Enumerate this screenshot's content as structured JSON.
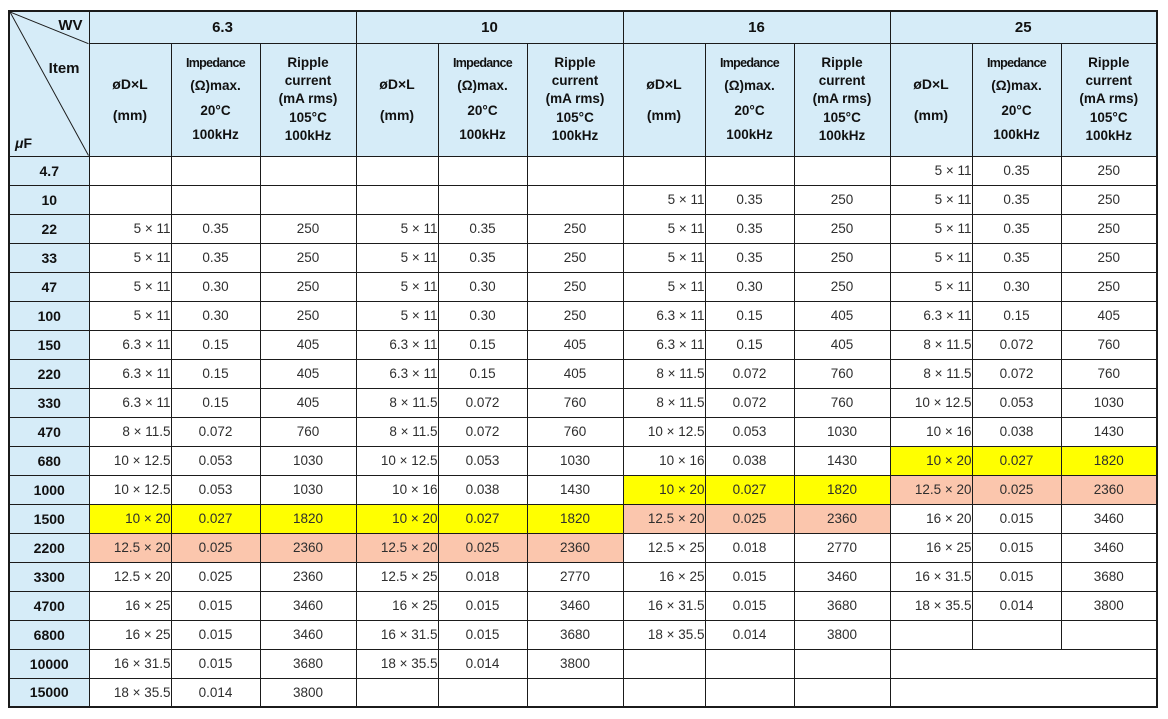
{
  "colors": {
    "header_bg": "#d6ecf8",
    "highlight_yellow": "#ffff00",
    "highlight_salmon": "#fbc6ad",
    "border": "#1b1b1b"
  },
  "table": {
    "corner": {
      "wv": "WV",
      "item": "Item",
      "uf": "μF"
    },
    "voltage_groups": [
      "6.3",
      "10",
      "16",
      "25"
    ],
    "column_headers": {
      "dim_lines": [
        "øD×L",
        "(mm)"
      ],
      "impedance_lines": [
        "Impedance",
        "(Ω)max.",
        "20°C",
        "100kHz"
      ],
      "ripple_lines": [
        "Ripple",
        "current",
        "(mA rms)",
        "105°C",
        "100kHz"
      ]
    },
    "rows": [
      {
        "uf": "4.7",
        "cells": [
          [
            "",
            "",
            ""
          ],
          [
            "",
            "",
            ""
          ],
          [
            "",
            "",
            ""
          ],
          [
            "5 × 11",
            "0.35",
            "250"
          ]
        ],
        "hl": [
          "",
          "",
          "",
          ""
        ]
      },
      {
        "uf": "10",
        "cells": [
          [
            "",
            "",
            ""
          ],
          [
            "",
            "",
            ""
          ],
          [
            "5 × 11",
            "0.35",
            "250"
          ],
          [
            "5 × 11",
            "0.35",
            "250"
          ]
        ],
        "hl": [
          "",
          "",
          "",
          ""
        ]
      },
      {
        "uf": "22",
        "cells": [
          [
            "5 × 11",
            "0.35",
            "250"
          ],
          [
            "5 × 11",
            "0.35",
            "250"
          ],
          [
            "5 × 11",
            "0.35",
            "250"
          ],
          [
            "5 × 11",
            "0.35",
            "250"
          ]
        ],
        "hl": [
          "",
          "",
          "",
          ""
        ]
      },
      {
        "uf": "33",
        "cells": [
          [
            "5 × 11",
            "0.35",
            "250"
          ],
          [
            "5 × 11",
            "0.35",
            "250"
          ],
          [
            "5 × 11",
            "0.35",
            "250"
          ],
          [
            "5 × 11",
            "0.35",
            "250"
          ]
        ],
        "hl": [
          "",
          "",
          "",
          ""
        ]
      },
      {
        "uf": "47",
        "cells": [
          [
            "5 × 11",
            "0.30",
            "250"
          ],
          [
            "5 × 11",
            "0.30",
            "250"
          ],
          [
            "5 × 11",
            "0.30",
            "250"
          ],
          [
            "5 × 11",
            "0.30",
            "250"
          ]
        ],
        "hl": [
          "",
          "",
          "",
          ""
        ]
      },
      {
        "uf": "100",
        "cells": [
          [
            "5 × 11",
            "0.30",
            "250"
          ],
          [
            "5 × 11",
            "0.30",
            "250"
          ],
          [
            "6.3 × 11",
            "0.15",
            "405"
          ],
          [
            "6.3 × 11",
            "0.15",
            "405"
          ]
        ],
        "hl": [
          "",
          "",
          "",
          ""
        ]
      },
      {
        "uf": "150",
        "cells": [
          [
            "6.3 × 11",
            "0.15",
            "405"
          ],
          [
            "6.3 × 11",
            "0.15",
            "405"
          ],
          [
            "6.3 × 11",
            "0.15",
            "405"
          ],
          [
            "8 × 11.5",
            "0.072",
            "760"
          ]
        ],
        "hl": [
          "",
          "",
          "",
          ""
        ]
      },
      {
        "uf": "220",
        "cells": [
          [
            "6.3 × 11",
            "0.15",
            "405"
          ],
          [
            "6.3 × 11",
            "0.15",
            "405"
          ],
          [
            "8 × 11.5",
            "0.072",
            "760"
          ],
          [
            "8 × 11.5",
            "0.072",
            "760"
          ]
        ],
        "hl": [
          "",
          "",
          "",
          ""
        ]
      },
      {
        "uf": "330",
        "cells": [
          [
            "6.3 × 11",
            "0.15",
            "405"
          ],
          [
            "8 × 11.5",
            "0.072",
            "760"
          ],
          [
            "8 × 11.5",
            "0.072",
            "760"
          ],
          [
            "10 × 12.5",
            "0.053",
            "1030"
          ]
        ],
        "hl": [
          "",
          "",
          "",
          ""
        ]
      },
      {
        "uf": "470",
        "cells": [
          [
            "8 × 11.5",
            "0.072",
            "760"
          ],
          [
            "8 × 11.5",
            "0.072",
            "760"
          ],
          [
            "10 × 12.5",
            "0.053",
            "1030"
          ],
          [
            "10 × 16",
            "0.038",
            "1430"
          ]
        ],
        "hl": [
          "",
          "",
          "",
          ""
        ]
      },
      {
        "uf": "680",
        "cells": [
          [
            "10 × 12.5",
            "0.053",
            "1030"
          ],
          [
            "10 × 12.5",
            "0.053",
            "1030"
          ],
          [
            "10 × 16",
            "0.038",
            "1430"
          ],
          [
            "10 × 20",
            "0.027",
            "1820"
          ]
        ],
        "hl": [
          "",
          "",
          "",
          "y"
        ]
      },
      {
        "uf": "1000",
        "cells": [
          [
            "10 × 12.5",
            "0.053",
            "1030"
          ],
          [
            "10 × 16",
            "0.038",
            "1430"
          ],
          [
            "10 × 20",
            "0.027",
            "1820"
          ],
          [
            "12.5 × 20",
            "0.025",
            "2360"
          ]
        ],
        "hl": [
          "",
          "",
          "y",
          "s"
        ]
      },
      {
        "uf": "1500",
        "cells": [
          [
            "10 × 20",
            "0.027",
            "1820"
          ],
          [
            "10 × 20",
            "0.027",
            "1820"
          ],
          [
            "12.5 × 20",
            "0.025",
            "2360"
          ],
          [
            "16 × 20",
            "0.015",
            "3460"
          ]
        ],
        "hl": [
          "y",
          "y",
          "s",
          ""
        ]
      },
      {
        "uf": "2200",
        "cells": [
          [
            "12.5 × 20",
            "0.025",
            "2360"
          ],
          [
            "12.5 × 20",
            "0.025",
            "2360"
          ],
          [
            "12.5 × 25",
            "0.018",
            "2770"
          ],
          [
            "16 × 25",
            "0.015",
            "3460"
          ]
        ],
        "hl": [
          "s",
          "s",
          "",
          ""
        ]
      },
      {
        "uf": "3300",
        "cells": [
          [
            "12.5 × 20",
            "0.025",
            "2360"
          ],
          [
            "12.5 × 25",
            "0.018",
            "2770"
          ],
          [
            "16 × 25",
            "0.015",
            "3460"
          ],
          [
            "16 × 31.5",
            "0.015",
            "3680"
          ]
        ],
        "hl": [
          "",
          "",
          "",
          ""
        ]
      },
      {
        "uf": "4700",
        "cells": [
          [
            "16 × 25",
            "0.015",
            "3460"
          ],
          [
            "16 × 25",
            "0.015",
            "3460"
          ],
          [
            "16 × 31.5",
            "0.015",
            "3680"
          ],
          [
            "18 × 35.5",
            "0.014",
            "3800"
          ]
        ],
        "hl": [
          "",
          "",
          "",
          ""
        ]
      },
      {
        "uf": "6800",
        "cells": [
          [
            "16 × 25",
            "0.015",
            "3460"
          ],
          [
            "16 × 31.5",
            "0.015",
            "3680"
          ],
          [
            "18 × 35.5",
            "0.014",
            "3800"
          ],
          [
            "",
            "",
            ""
          ]
        ],
        "hl": [
          "",
          "",
          "",
          ""
        ]
      },
      {
        "uf": "10000",
        "cells": [
          [
            "16 × 31.5",
            "0.015",
            "3680"
          ],
          [
            "18 × 35.5",
            "0.014",
            "3800"
          ],
          [
            "",
            "",
            ""
          ],
          [
            "",
            "",
            ""
          ]
        ],
        "hl": [
          "",
          "",
          "",
          ""
        ],
        "merged": [
          false,
          false,
          false,
          true
        ]
      },
      {
        "uf": "15000",
        "cells": [
          [
            "18 × 35.5",
            "0.014",
            "3800"
          ],
          [
            "",
            "",
            ""
          ],
          [
            "",
            "",
            ""
          ],
          [
            "",
            "",
            ""
          ]
        ],
        "hl": [
          "",
          "",
          "",
          ""
        ],
        "merged": [
          false,
          false,
          false,
          true
        ]
      }
    ]
  }
}
